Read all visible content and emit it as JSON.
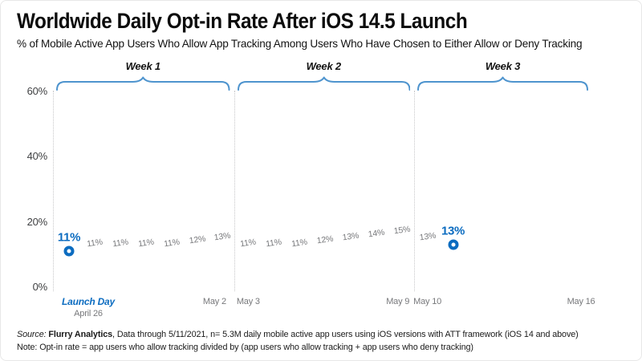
{
  "header": {
    "title": "Worldwide Daily Opt-in Rate After iOS 14.5 Launch",
    "subtitle": "% of Mobile Active App Users Who Allow App Tracking Among Users Who Have Chosen to Either Allow or Deny Tracking"
  },
  "colors": {
    "accent_blue": "#0c6cc0",
    "bracket_blue": "#4e94ce",
    "label_gray": "#77787b"
  },
  "chart_data": {
    "type": "scatter",
    "title": "Worldwide Daily Opt-in Rate After iOS 14.5 Launch",
    "xlabel": "",
    "ylabel": "",
    "ylim": [
      0,
      60
    ],
    "grid": false,
    "legend": null,
    "y_ticks": [
      {
        "value": 0,
        "label": "0%"
      },
      {
        "value": 20,
        "label": "20%"
      },
      {
        "value": 40,
        "label": "40%"
      },
      {
        "value": 60,
        "label": "60%"
      }
    ],
    "weeks": [
      {
        "label": "Week 1",
        "start_day": 0,
        "end_day": 6
      },
      {
        "label": "Week 2",
        "start_day": 7,
        "end_day": 13
      },
      {
        "label": "Week 3",
        "start_day": 14,
        "end_day": 20
      }
    ],
    "points": [
      {
        "day": 0,
        "value": 11,
        "label": "11%",
        "highlight": true
      },
      {
        "day": 1,
        "value": 11,
        "label": "11%",
        "highlight": false
      },
      {
        "day": 2,
        "value": 11,
        "label": "11%",
        "highlight": false
      },
      {
        "day": 3,
        "value": 11,
        "label": "11%",
        "highlight": false
      },
      {
        "day": 4,
        "value": 11,
        "label": "11%",
        "highlight": false
      },
      {
        "day": 5,
        "value": 12,
        "label": "12%",
        "highlight": false
      },
      {
        "day": 6,
        "value": 13,
        "label": "13%",
        "highlight": false
      },
      {
        "day": 7,
        "value": 11,
        "label": "11%",
        "highlight": false
      },
      {
        "day": 8,
        "value": 11,
        "label": "11%",
        "highlight": false
      },
      {
        "day": 9,
        "value": 11,
        "label": "11%",
        "highlight": false
      },
      {
        "day": 10,
        "value": 12,
        "label": "12%",
        "highlight": false
      },
      {
        "day": 11,
        "value": 13,
        "label": "13%",
        "highlight": false
      },
      {
        "day": 12,
        "value": 14,
        "label": "14%",
        "highlight": false
      },
      {
        "day": 13,
        "value": 15,
        "label": "15%",
        "highlight": false
      },
      {
        "day": 14,
        "value": 13,
        "label": "13%",
        "highlight": false
      },
      {
        "day": 15,
        "value": 13,
        "label": "13%",
        "highlight": true
      }
    ],
    "x_axis_labels": [
      {
        "day": 0,
        "label": "Launch Day",
        "sublabel": "April 26",
        "highlight": true
      },
      {
        "day": 6,
        "label": "May 2",
        "highlight": false
      },
      {
        "day": 7,
        "label": "May 3",
        "highlight": false
      },
      {
        "day": 13,
        "label": "May 9",
        "highlight": false
      },
      {
        "day": 14,
        "label": "May 10",
        "highlight": false
      },
      {
        "day": 20,
        "label": "May 16",
        "highlight": false
      }
    ]
  },
  "footer": {
    "source_label": "Source: ",
    "source_name": "Flurry Analytics",
    "source_rest": ", Data through 5/11/2021, n= 5.3M daily mobile active app users using iOS versions with ATT framework (iOS 14 and above)",
    "note": "Note: Opt-in rate = app users who allow tracking divided by (app users who allow tracking + app users who deny tracking)"
  }
}
